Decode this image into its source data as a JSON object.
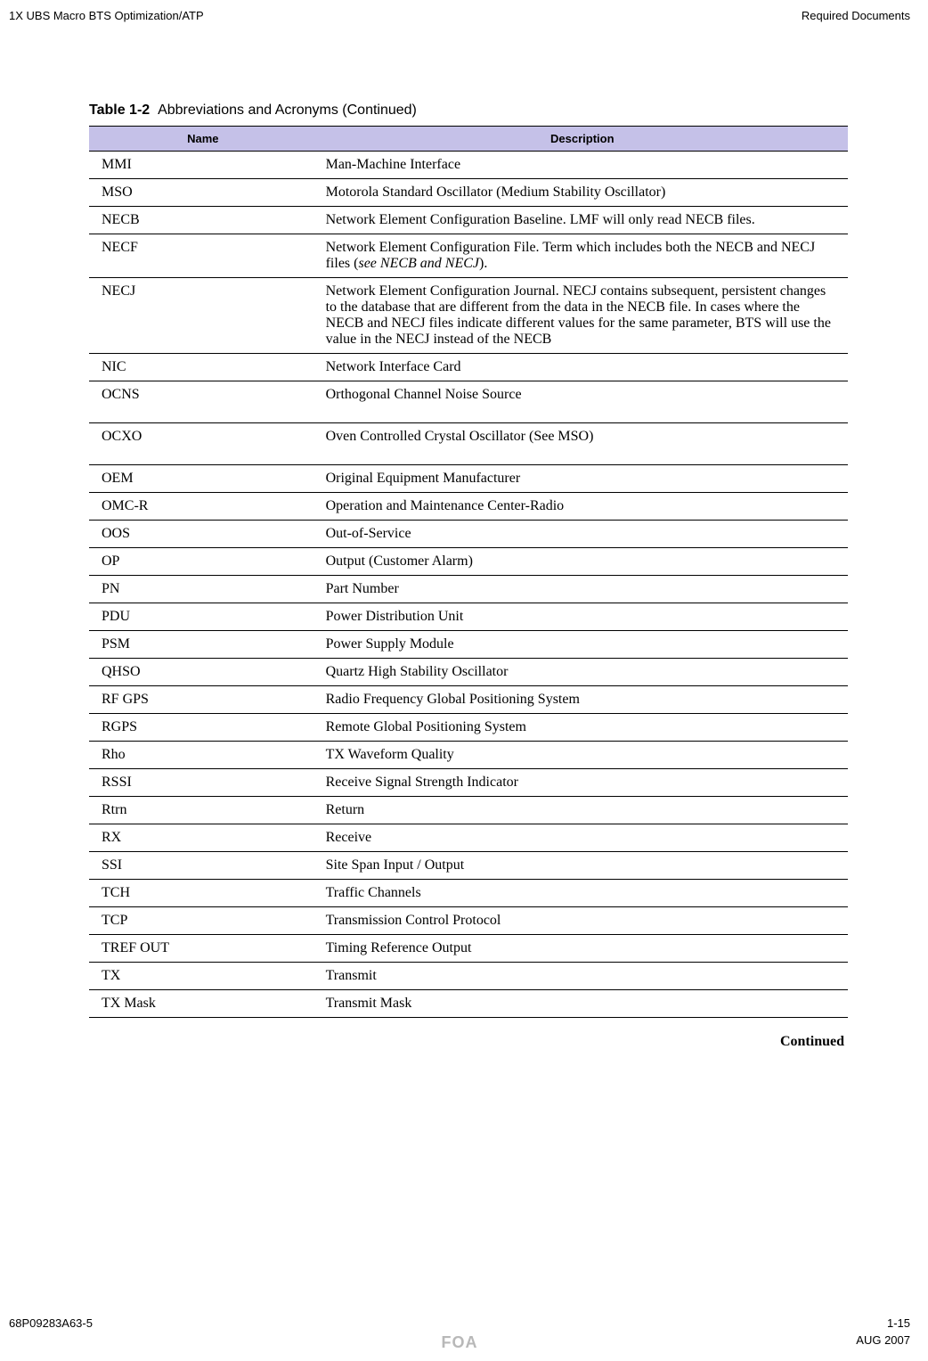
{
  "header": {
    "left": "1X UBS Macro BTS Optimization/ATP",
    "right": "Required Documents"
  },
  "table": {
    "number": "Table 1-2",
    "title": "Abbreviations and Acronyms (Continued)",
    "columns": [
      "Name",
      "Description"
    ],
    "header_bg": "#c5c1e8",
    "rows": [
      {
        "name": "MMI",
        "desc": "Man-Machine Interface"
      },
      {
        "name": "MSO",
        "desc": "Motorola Standard Oscillator (Medium Stability Oscillator)"
      },
      {
        "name": "NECB",
        "desc": "Network Element Configuration Baseline. LMF will only read NECB files."
      },
      {
        "name": "NECF",
        "desc": "Network Element Configuration File. Term which includes both the NECB and NECJ files (",
        "desc_italic": "see NECB and NECJ",
        "desc_after": ")."
      },
      {
        "name": "NECJ",
        "desc": "Network Element Configuration Journal. NECJ contains subsequent, persistent changes to the database that are different from the data in the NECB file. In cases where the NECB and NECJ files indicate different values for the same parameter, BTS will use the value in the NECJ instead of the NECB"
      },
      {
        "name": "NIC",
        "desc": "Network Interface Card"
      },
      {
        "name": "OCNS",
        "desc": "Orthogonal Channel Noise Source",
        "extra_padding": true
      },
      {
        "name": "OCXO",
        "desc": "Oven Controlled Crystal Oscillator (See MSO)",
        "extra_padding": true
      },
      {
        "name": "OEM",
        "desc": "Original Equipment Manufacturer"
      },
      {
        "name": "OMC-R",
        "desc": "Operation and Maintenance Center-Radio"
      },
      {
        "name": "OOS",
        "desc": "Out-of-Service"
      },
      {
        "name": "OP",
        "desc": "Output (Customer Alarm)"
      },
      {
        "name": "PN",
        "desc": "Part Number"
      },
      {
        "name": "PDU",
        "desc": "Power Distribution Unit"
      },
      {
        "name": "PSM",
        "desc": "Power Supply Module"
      },
      {
        "name": "QHSO",
        "desc": "Quartz High Stability Oscillator"
      },
      {
        "name": "RF GPS",
        "desc": "Radio Frequency Global Positioning System"
      },
      {
        "name": "RGPS",
        "desc": "Remote Global Positioning System"
      },
      {
        "name": "Rho",
        "desc": "TX Waveform Quality"
      },
      {
        "name": "RSSI",
        "desc": "Receive Signal Strength Indicator"
      },
      {
        "name": "Rtrn",
        "desc": "Return"
      },
      {
        "name": "RX",
        "desc": "Receive"
      },
      {
        "name": "SSI",
        "desc": "Site Span Input / Output"
      },
      {
        "name": "TCH",
        "desc": "Traffic Channels"
      },
      {
        "name": "TCP",
        "desc": "Transmission Control Protocol"
      },
      {
        "name": "TREF OUT",
        "desc": "Timing Reference Output"
      },
      {
        "name": "TX",
        "desc": "Transmit"
      },
      {
        "name": "TX Mask",
        "desc": "Transmit Mask"
      }
    ]
  },
  "continued_label": "Continued",
  "footer": {
    "doc_number": "68P09283A63-5",
    "page_number": "1-15",
    "foa": "FOA",
    "date": "AUG 2007"
  }
}
